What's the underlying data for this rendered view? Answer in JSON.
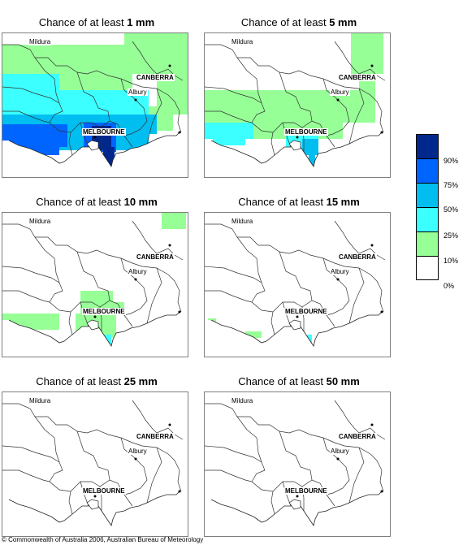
{
  "panels": [
    {
      "prefix": "Chance of at least ",
      "amount": "1 mm"
    },
    {
      "prefix": "Chance of at least ",
      "amount": "5 mm"
    },
    {
      "prefix": "Chance of at least ",
      "amount": "10 mm"
    },
    {
      "prefix": "Chance of at least ",
      "amount": "15 mm"
    },
    {
      "prefix": "Chance of at least ",
      "amount": "25 mm"
    },
    {
      "prefix": "Chance of at least ",
      "amount": "50 mm"
    }
  ],
  "places": {
    "mildura": "Mildura",
    "canberra": "CANBERRA",
    "albury": "Albury",
    "melbourne": "MELBOURNE"
  },
  "legend": {
    "labels": [
      "90%",
      "75%",
      "50%",
      "25%",
      "10%",
      "0%"
    ],
    "colors": [
      "#00288c",
      "#0064ff",
      "#00bef0",
      "#3cffff",
      "#96ff96",
      "#ffffff"
    ]
  },
  "footer": "© Commonwealth of Australia 2006, Australian Bureau of Meteorology"
}
